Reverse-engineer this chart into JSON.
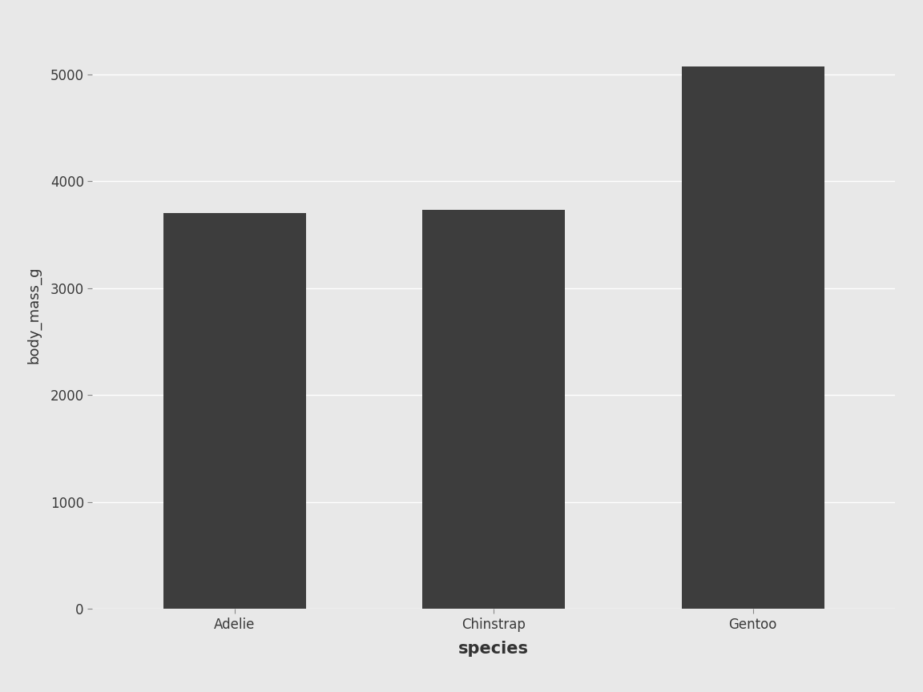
{
  "categories": [
    "Adelie",
    "Chinstrap",
    "Gentoo"
  ],
  "values": [
    3700.66,
    3733.09,
    5076.02
  ],
  "bar_color": "#3d3d3d",
  "figure_background": "#e8e8e8",
  "panel_background": "#e8e8e8",
  "grid_color": "#ffffff",
  "xlabel": "species",
  "ylabel": "body_mass_g",
  "xlabel_fontsize": 15,
  "ylabel_fontsize": 13,
  "tick_fontsize": 12,
  "ylim": [
    0,
    5500
  ],
  "yticks": [
    0,
    1000,
    2000,
    3000,
    4000,
    5000
  ],
  "bar_width": 0.55
}
